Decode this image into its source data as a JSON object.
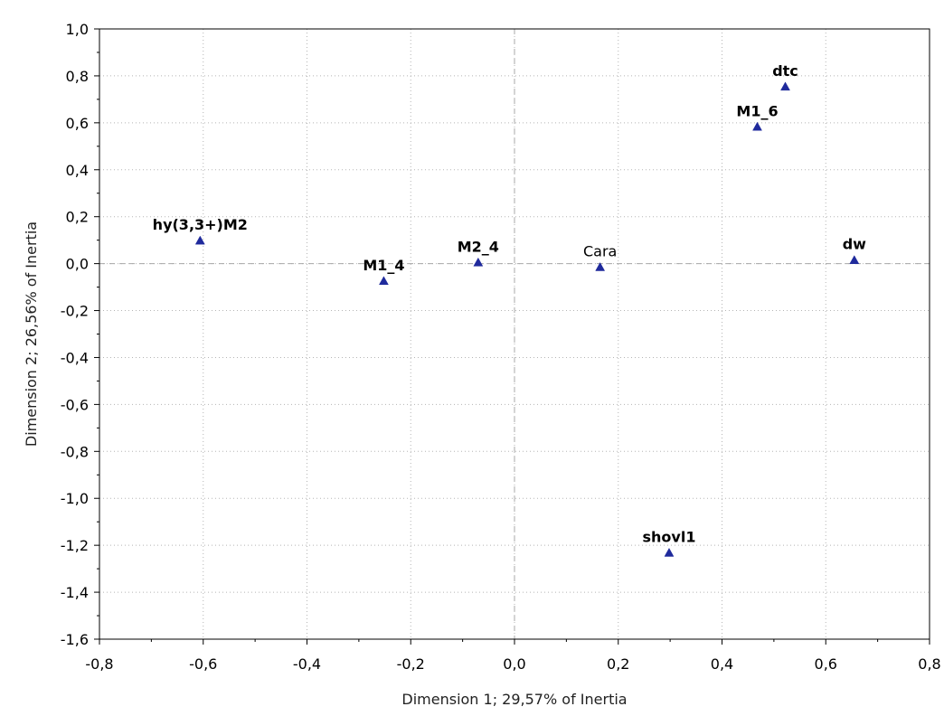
{
  "chart_data": {
    "type": "scatter",
    "title": "",
    "xlabel": "Dimension 1; 29,57% of Inertia",
    "ylabel": "Dimension 2; 26,56% of Inertia",
    "xlim": [
      -0.8,
      0.8
    ],
    "ylim": [
      -1.6,
      1.0
    ],
    "xticks": [
      -0.8,
      -0.6,
      -0.4,
      -0.2,
      0.0,
      0.2,
      0.4,
      0.6,
      0.8
    ],
    "xtick_labels": [
      "-0,8",
      "-0,6",
      "-0,4",
      "-0,2",
      "0,0",
      "0,2",
      "0,4",
      "0,6",
      "0,8"
    ],
    "yticks": [
      1.0,
      0.8,
      0.6,
      0.4,
      0.2,
      0.0,
      -0.2,
      -0.4,
      -0.6,
      -0.8,
      -1.0,
      -1.2,
      -1.4,
      -1.6
    ],
    "ytick_labels": [
      "1,0",
      "0,8",
      "0,6",
      "0,4",
      "0,2",
      "0,0",
      "-0,2",
      "-0,4",
      "-0,6",
      "-0,8",
      "-1,0",
      "-1,2",
      "-1,4",
      "-1,6"
    ],
    "grid": true,
    "reference_lines": {
      "x": 0,
      "y": 0
    },
    "marker": "triangle",
    "marker_color": "#1f2a9c",
    "points": [
      {
        "label": "hy(3,3+)M2",
        "x": -0.606,
        "y": 0.098,
        "bold": true
      },
      {
        "label": "M1_4",
        "x": -0.252,
        "y": -0.074,
        "bold": true
      },
      {
        "label": "M2_4",
        "x": -0.07,
        "y": 0.005,
        "bold": true
      },
      {
        "label": "Cara",
        "x": 0.165,
        "y": -0.015,
        "bold": false
      },
      {
        "label": "dtc",
        "x": 0.522,
        "y": 0.754,
        "bold": true
      },
      {
        "label": "M1_6",
        "x": 0.468,
        "y": 0.583,
        "bold": true
      },
      {
        "label": "dw",
        "x": 0.655,
        "y": 0.015,
        "bold": true
      },
      {
        "label": "shovl1",
        "x": 0.298,
        "y": -1.232,
        "bold": true
      }
    ]
  }
}
